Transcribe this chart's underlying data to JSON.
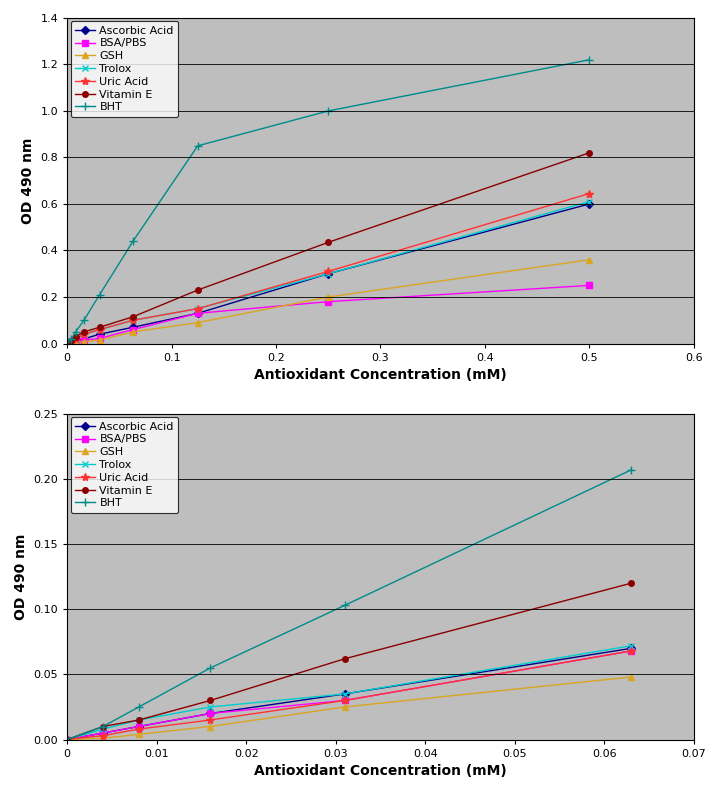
{
  "chart1": {
    "xlabel": "Antioxidant Concentration (mM)",
    "ylabel": "OD 490 nm",
    "xlim": [
      0,
      0.6
    ],
    "ylim": [
      0,
      1.4
    ],
    "xticks": [
      0,
      0.1,
      0.2,
      0.3,
      0.4,
      0.5,
      0.6
    ],
    "yticks": [
      0,
      0.2,
      0.4,
      0.6,
      0.8,
      1.0,
      1.2,
      1.4
    ],
    "series": [
      {
        "label": "Ascorbic Acid",
        "color": "#00008B",
        "marker": "D",
        "marker_size": 4,
        "x": [
          0,
          0.004,
          0.008,
          0.016,
          0.031,
          0.063,
          0.125,
          0.25,
          0.5
        ],
        "y": [
          0,
          0.005,
          0.01,
          0.02,
          0.04,
          0.07,
          0.13,
          0.3,
          0.6
        ]
      },
      {
        "label": "BSA/PBS",
        "color": "#FF00FF",
        "marker": "s",
        "marker_size": 4,
        "x": [
          0,
          0.004,
          0.008,
          0.016,
          0.031,
          0.063,
          0.125,
          0.25,
          0.5
        ],
        "y": [
          0,
          0.005,
          0.01,
          0.015,
          0.022,
          0.06,
          0.13,
          0.18,
          0.25
        ]
      },
      {
        "label": "GSH",
        "color": "#DAA520",
        "marker": "^",
        "marker_size": 4,
        "x": [
          0,
          0.004,
          0.008,
          0.016,
          0.031,
          0.063,
          0.125,
          0.25,
          0.5
        ],
        "y": [
          0,
          0.003,
          0.005,
          0.008,
          0.015,
          0.05,
          0.09,
          0.2,
          0.36
        ]
      },
      {
        "label": "Trolox",
        "color": "#00CCCC",
        "marker": "x",
        "marker_size": 5,
        "x": [
          0,
          0.004,
          0.008,
          0.016,
          0.031,
          0.063,
          0.125,
          0.25,
          0.5
        ],
        "y": [
          0,
          0.01,
          0.02,
          0.04,
          0.06,
          0.1,
          0.15,
          0.3,
          0.61
        ]
      },
      {
        "label": "Uric Acid",
        "color": "#FF3333",
        "marker": "*",
        "marker_size": 6,
        "x": [
          0,
          0.004,
          0.008,
          0.016,
          0.031,
          0.063,
          0.125,
          0.25,
          0.5
        ],
        "y": [
          0,
          0.01,
          0.02,
          0.04,
          0.06,
          0.1,
          0.15,
          0.31,
          0.645
        ]
      },
      {
        "label": "Vitamin E",
        "color": "#8B0000",
        "marker": "o",
        "marker_size": 4,
        "x": [
          0,
          0.004,
          0.008,
          0.016,
          0.031,
          0.063,
          0.125,
          0.25,
          0.5
        ],
        "y": [
          0,
          0.01,
          0.03,
          0.05,
          0.07,
          0.115,
          0.23,
          0.435,
          0.82
        ]
      },
      {
        "label": "BHT",
        "color": "#008B8B",
        "marker": "+",
        "marker_size": 6,
        "x": [
          0,
          0.004,
          0.008,
          0.016,
          0.031,
          0.063,
          0.125,
          0.25,
          0.5
        ],
        "y": [
          0,
          0.02,
          0.05,
          0.1,
          0.21,
          0.44,
          0.85,
          1.0,
          1.22
        ]
      }
    ]
  },
  "chart2": {
    "xlabel": "Antioxidant Concentration (mM)",
    "ylabel": "OD 490 nm",
    "xlim": [
      0,
      0.07
    ],
    "ylim": [
      0,
      0.25
    ],
    "xticks": [
      0,
      0.01,
      0.02,
      0.03,
      0.04,
      0.05,
      0.06,
      0.07
    ],
    "yticks": [
      0,
      0.05,
      0.1,
      0.15,
      0.2,
      0.25
    ],
    "series": [
      {
        "label": "Ascorbic Acid",
        "color": "#00008B",
        "marker": "D",
        "marker_size": 4,
        "x": [
          0,
          0.004,
          0.008,
          0.016,
          0.031,
          0.063
        ],
        "y": [
          0,
          0.005,
          0.01,
          0.02,
          0.035,
          0.07
        ]
      },
      {
        "label": "BSA/PBS",
        "color": "#FF00FF",
        "marker": "s",
        "marker_size": 4,
        "x": [
          0,
          0.004,
          0.008,
          0.016,
          0.031,
          0.063
        ],
        "y": [
          0,
          0.005,
          0.01,
          0.02,
          0.03,
          0.068
        ]
      },
      {
        "label": "GSH",
        "color": "#DAA520",
        "marker": "^",
        "marker_size": 4,
        "x": [
          0,
          0.004,
          0.008,
          0.016,
          0.031,
          0.063
        ],
        "y": [
          0,
          0.001,
          0.004,
          0.01,
          0.025,
          0.048
        ]
      },
      {
        "label": "Trolox",
        "color": "#00CCCC",
        "marker": "x",
        "marker_size": 5,
        "x": [
          0,
          0.004,
          0.008,
          0.016,
          0.031,
          0.063
        ],
        "y": [
          0,
          0.008,
          0.015,
          0.025,
          0.035,
          0.072
        ]
      },
      {
        "label": "Uric Acid",
        "color": "#FF3333",
        "marker": "*",
        "marker_size": 6,
        "x": [
          0,
          0.004,
          0.008,
          0.016,
          0.031,
          0.063
        ],
        "y": [
          0,
          0.003,
          0.008,
          0.015,
          0.03,
          0.068
        ]
      },
      {
        "label": "Vitamin E",
        "color": "#8B0000",
        "marker": "o",
        "marker_size": 4,
        "x": [
          0,
          0.004,
          0.008,
          0.016,
          0.031,
          0.063
        ],
        "y": [
          0,
          0.01,
          0.015,
          0.03,
          0.062,
          0.12
        ]
      },
      {
        "label": "BHT",
        "color": "#008B8B",
        "marker": "+",
        "marker_size": 6,
        "x": [
          0,
          0.004,
          0.008,
          0.016,
          0.031,
          0.063
        ],
        "y": [
          0,
          0.01,
          0.025,
          0.055,
          0.103,
          0.207
        ]
      }
    ]
  },
  "plot_bg_color": "#BEBEBE",
  "fig_bg_color": "#FFFFFF",
  "legend_fontsize": 8,
  "axis_label_fontsize": 10,
  "tick_fontsize": 8
}
